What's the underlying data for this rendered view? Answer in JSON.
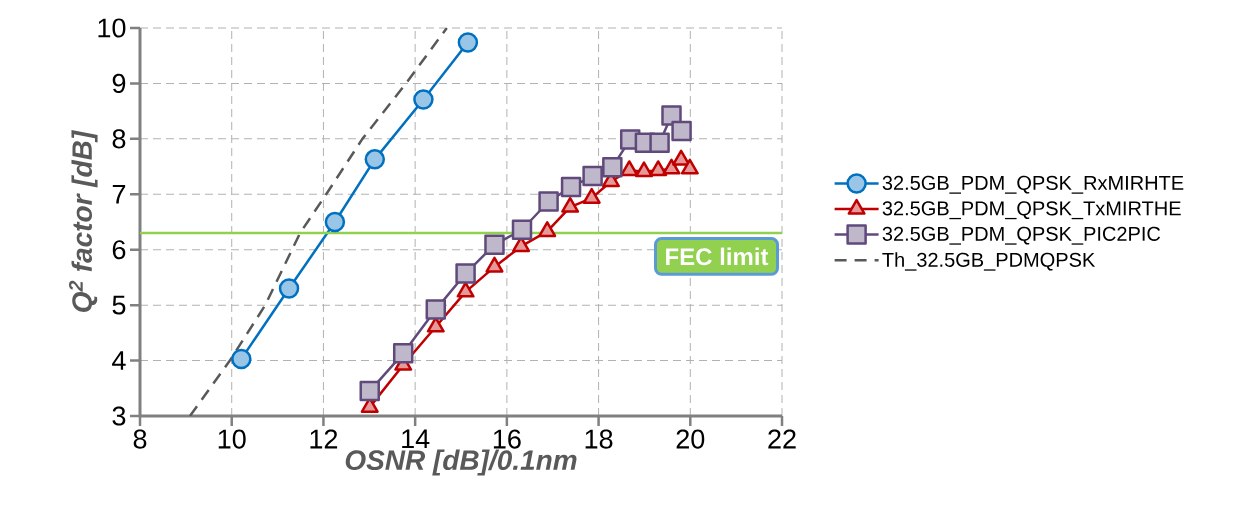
{
  "chart_data": {
    "type": "line",
    "xlabel": "OSNR [dB]/0.1nm",
    "ylabel": "Q$^{2}$ factor [dB]",
    "xlim": [
      8,
      22
    ],
    "ylim": [
      3,
      10
    ],
    "xticks": [
      8,
      10,
      12,
      14,
      16,
      18,
      20,
      22
    ],
    "yticks": [
      3,
      4,
      5,
      6,
      7,
      8,
      9,
      10
    ],
    "grid": true,
    "legend": "right",
    "series": [
      {
        "name": "32.5GB_PDM_QPSK_RxMIRHTE",
        "color": "#0070c0",
        "marker": "circle",
        "line_style": "solid",
        "x": [
          10.21,
          11.25,
          12.25,
          13.12,
          14.18,
          15.15
        ],
        "values": [
          4.03,
          5.3,
          6.5,
          7.63,
          8.71,
          9.74
        ]
      },
      {
        "name": "32.5GB_PDM_QPSK_TxMIRTHE",
        "color": "#c00000",
        "marker": "triangle",
        "line_style": "solid",
        "x": [
          13.01,
          13.74,
          14.45,
          15.1,
          15.73,
          16.31,
          16.88,
          17.38,
          17.85,
          18.27,
          18.67,
          18.99,
          19.3,
          19.59,
          19.8,
          19.99
        ],
        "values": [
          3.16,
          3.92,
          4.61,
          5.24,
          5.69,
          6.06,
          6.33,
          6.77,
          6.93,
          7.23,
          7.43,
          7.41,
          7.43,
          7.46,
          7.62,
          7.46
        ]
      },
      {
        "name": "32.5GB_PDM_QPSK_PIC2PIC",
        "color": "#604a7b",
        "marker": "square",
        "line_style": "solid",
        "x": [
          13.01,
          13.74,
          14.45,
          15.1,
          15.73,
          16.33,
          16.91,
          17.4,
          17.87,
          18.3,
          18.69,
          19.01,
          19.33,
          19.59,
          19.81
        ],
        "values": [
          3.45,
          4.13,
          4.92,
          5.57,
          6.09,
          6.36,
          6.87,
          7.13,
          7.33,
          7.49,
          7.99,
          7.93,
          7.93,
          8.42,
          8.14
        ]
      },
      {
        "name": "Th_32.5GB_PDMQPSK",
        "color": "#595959",
        "marker": "none",
        "line_style": "dashed",
        "x": [
          9.09,
          9.96,
          10.73,
          11.49,
          12.06,
          12.85,
          13.8,
          14.69
        ],
        "values": [
          3,
          4,
          5,
          6.3,
          7,
          8,
          9,
          10
        ]
      }
    ],
    "ref_lines": [
      {
        "axis": "y",
        "value": 6.3,
        "label": "FEC limit",
        "color": "#92d050"
      }
    ]
  }
}
